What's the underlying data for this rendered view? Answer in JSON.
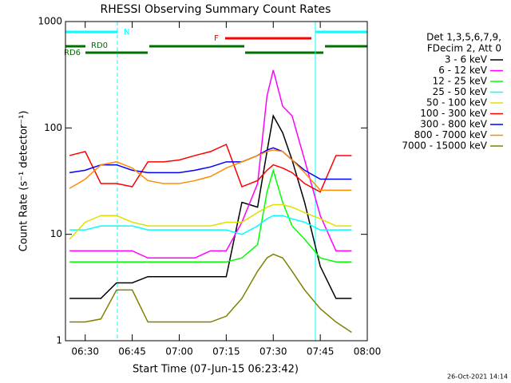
{
  "chart_data": {
    "type": "line",
    "title": "RHESSI Observing Summary Count Rates",
    "x_label": "Start Time (07-Jun-15 06:23:42)",
    "y_label": "Count Rate (s⁻¹ detector⁻¹)",
    "footer": "26-Oct-2021 14:14",
    "legend_header": [
      "Det 1,3,5,6,7,9,",
      "FDecim 2, Att 0"
    ],
    "annotations": [
      "N",
      "RD0",
      "RD6",
      "F"
    ],
    "log_y": true,
    "xlim": [
      "06:23:42",
      "08:00"
    ],
    "xticks": [
      "06:30",
      "06:45",
      "07:00",
      "07:15",
      "07:30",
      "07:45",
      "08:00"
    ],
    "ylim": [
      1,
      1000
    ],
    "yticks": [
      1,
      10,
      100,
      1000
    ],
    "x": [
      "06:25",
      "06:30",
      "06:35",
      "06:40",
      "06:45",
      "06:50",
      "06:55",
      "07:00",
      "07:05",
      "07:10",
      "07:15",
      "07:20",
      "07:25",
      "07:28",
      "07:30",
      "07:33",
      "07:36",
      "07:40",
      "07:45",
      "07:50",
      "07:55"
    ],
    "series": [
      {
        "name": "3 - 6 keV",
        "color": "#000000",
        "values": [
          2.5,
          2.5,
          2.5,
          3.5,
          3.5,
          4,
          4,
          4,
          4,
          4,
          4,
          20,
          18,
          60,
          130,
          90,
          50,
          20,
          5,
          2.5,
          2.5
        ]
      },
      {
        "name": "6 - 12 keV",
        "color": "#ff00ff",
        "values": [
          7,
          7,
          7,
          7,
          7,
          6,
          6,
          6,
          6,
          7,
          7,
          13,
          30,
          200,
          350,
          160,
          130,
          50,
          15,
          7,
          7
        ]
      },
      {
        "name": "12 - 25 keV",
        "color": "#00ff00",
        "values": [
          5.5,
          5.5,
          5.5,
          5.5,
          5.5,
          5.5,
          5.5,
          5.5,
          5.5,
          5.5,
          5.5,
          6,
          8,
          25,
          40,
          20,
          12,
          9,
          6,
          5.5,
          5.5
        ]
      },
      {
        "name": "25 - 50 keV",
        "color": "#00ffff",
        "values": [
          11,
          11,
          12,
          12,
          12,
          11,
          11,
          11,
          11,
          11,
          11,
          10,
          12,
          14,
          15,
          15,
          14,
          13,
          11,
          11,
          11
        ]
      },
      {
        "name": "50 - 100 keV",
        "color": "#e0e000",
        "values": [
          9,
          13,
          15,
          15,
          13,
          12,
          12,
          12,
          12,
          12,
          13,
          13,
          16,
          18,
          19,
          19,
          18,
          16,
          14,
          12,
          12
        ]
      },
      {
        "name": "100 - 300 keV",
        "color": "#ff0000",
        "values": [
          55,
          60,
          30,
          30,
          28,
          48,
          48,
          50,
          55,
          60,
          70,
          28,
          32,
          40,
          45,
          42,
          38,
          30,
          25,
          55,
          55
        ]
      },
      {
        "name": "300 - 800 keV",
        "color": "#0000ff",
        "values": [
          38,
          40,
          45,
          45,
          40,
          38,
          38,
          38,
          40,
          43,
          48,
          48,
          55,
          62,
          65,
          60,
          50,
          40,
          33,
          33,
          33
        ]
      },
      {
        "name": "800 - 7000 keV",
        "color": "#ff8c00",
        "values": [
          27,
          33,
          45,
          48,
          42,
          32,
          30,
          30,
          32,
          35,
          42,
          48,
          55,
          60,
          62,
          60,
          50,
          38,
          26,
          26,
          26
        ]
      },
      {
        "name": "7000 - 15000 keV",
        "color": "#808000",
        "values": [
          1.5,
          1.5,
          1.6,
          3,
          3,
          1.5,
          1.5,
          1.5,
          1.5,
          1.5,
          1.7,
          2.5,
          4.5,
          6,
          6.5,
          6,
          4.5,
          3,
          2,
          1.5,
          1.2
        ]
      }
    ]
  }
}
